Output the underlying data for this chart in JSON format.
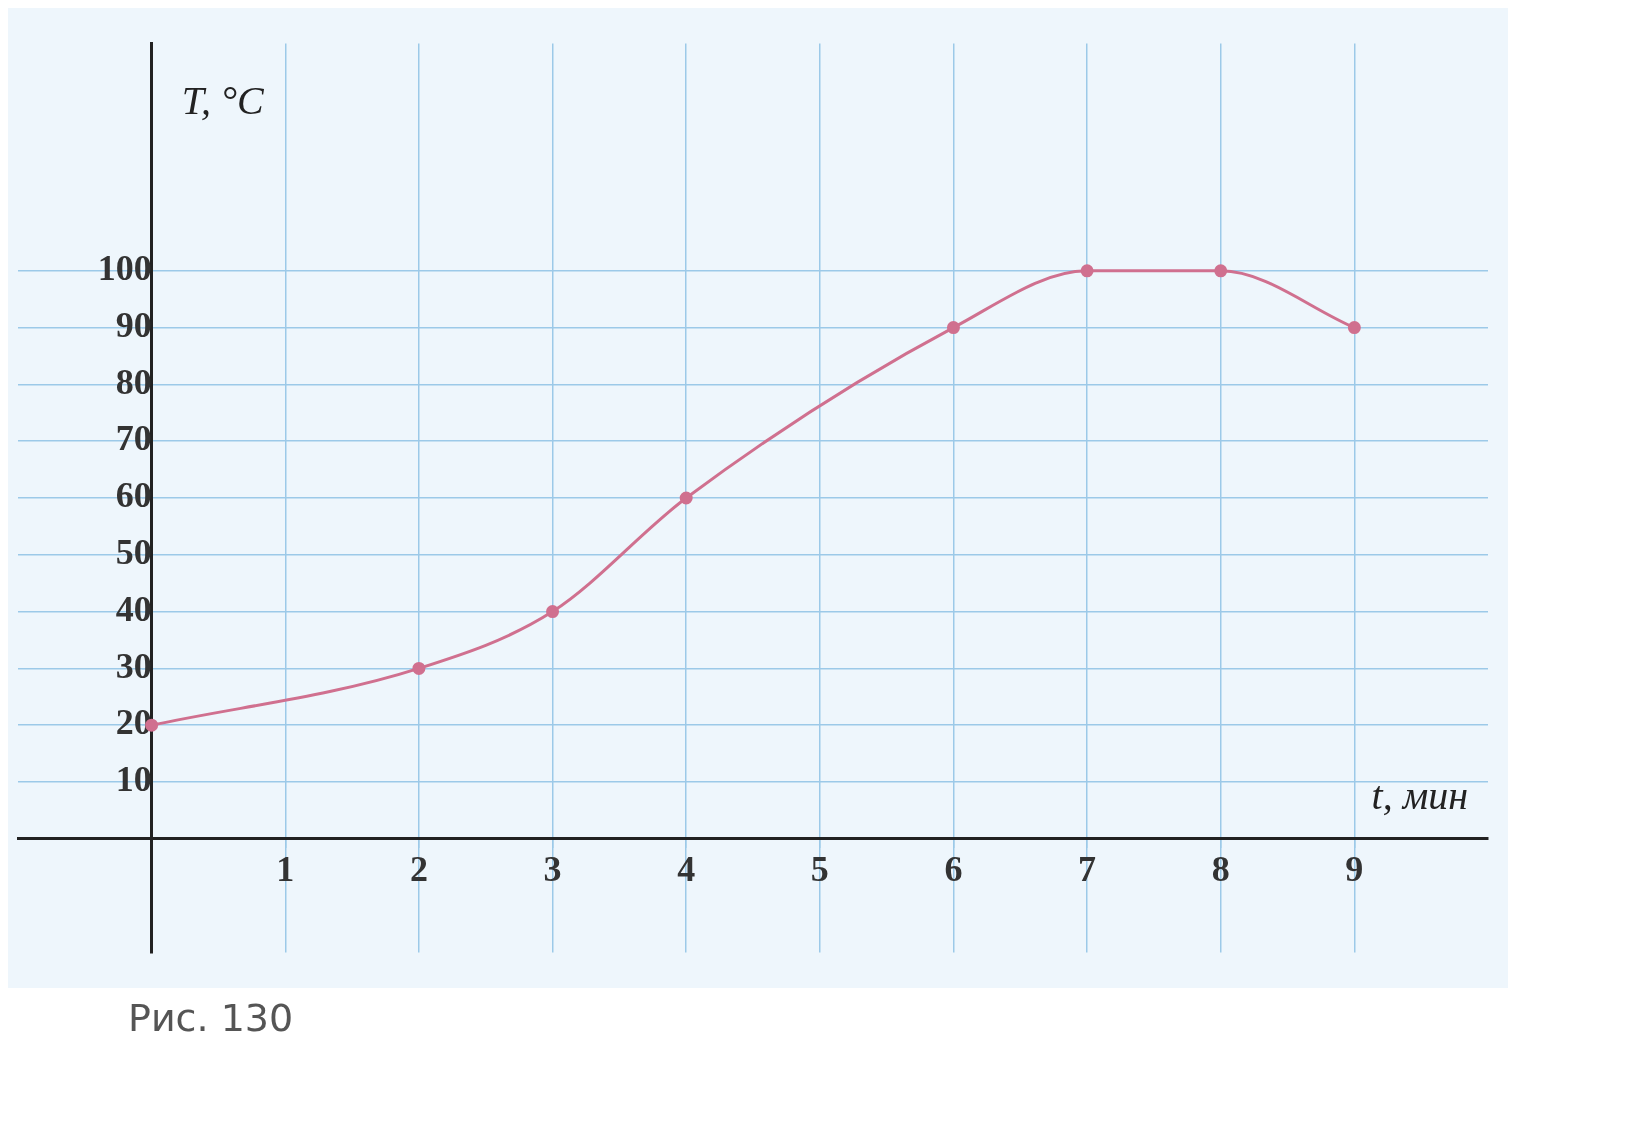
{
  "chart_data": {
    "type": "line",
    "xlabel": "t, мин",
    "ylabel": "T, °C",
    "annotations": [
      "Рис. 130"
    ],
    "x": [
      0,
      2,
      3,
      4,
      6,
      7,
      8,
      9
    ],
    "series": [
      {
        "color": "#d0708f",
        "values": [
          20,
          30,
          40,
          60,
          90,
          100,
          100,
          90
        ]
      }
    ],
    "xlim": [
      -1,
      10
    ],
    "ylim": [
      -20,
      140
    ],
    "xticks": [
      1,
      2,
      3,
      4,
      5,
      6,
      7,
      8,
      9
    ],
    "yticks": [
      10,
      20,
      30,
      40,
      50,
      60,
      70,
      80,
      90,
      100
    ],
    "grid": true,
    "marker": "circle",
    "line_style": "solid",
    "legend": false
  }
}
